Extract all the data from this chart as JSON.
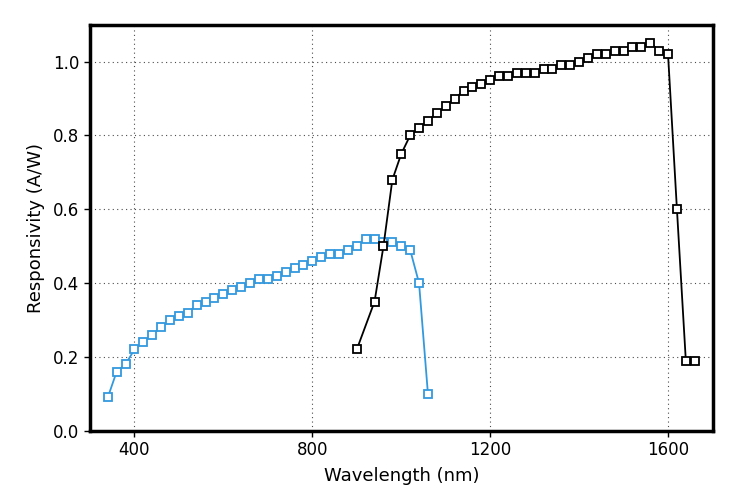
{
  "title": "",
  "xlabel": "Wavelength (nm)",
  "ylabel": "Responsivity (A/W)",
  "xlim": [
    300,
    1700
  ],
  "ylim": [
    0.0,
    1.1
  ],
  "yticks": [
    0.0,
    0.2,
    0.4,
    0.6,
    0.8,
    1.0
  ],
  "xticks": [
    400,
    800,
    1200,
    1600
  ],
  "background": "#ffffff",
  "blue_x": [
    340,
    360,
    380,
    400,
    420,
    440,
    460,
    480,
    500,
    520,
    540,
    560,
    580,
    600,
    620,
    640,
    660,
    680,
    700,
    720,
    740,
    760,
    780,
    800,
    820,
    840,
    860,
    880,
    900,
    920,
    940,
    960,
    980,
    1000,
    1020,
    1040,
    1060
  ],
  "blue_y": [
    0.09,
    0.16,
    0.18,
    0.22,
    0.24,
    0.26,
    0.28,
    0.3,
    0.31,
    0.32,
    0.34,
    0.35,
    0.36,
    0.37,
    0.38,
    0.39,
    0.4,
    0.41,
    0.41,
    0.42,
    0.43,
    0.44,
    0.45,
    0.46,
    0.47,
    0.48,
    0.48,
    0.49,
    0.5,
    0.52,
    0.52,
    0.51,
    0.51,
    0.5,
    0.49,
    0.4,
    0.1
  ],
  "black_x": [
    900,
    940,
    960,
    980,
    1000,
    1020,
    1040,
    1060,
    1080,
    1100,
    1120,
    1140,
    1160,
    1180,
    1200,
    1220,
    1240,
    1260,
    1280,
    1300,
    1320,
    1340,
    1360,
    1380,
    1400,
    1420,
    1440,
    1460,
    1480,
    1500,
    1520,
    1540,
    1560,
    1580,
    1600,
    1620,
    1640,
    1660
  ],
  "black_y": [
    0.22,
    0.35,
    0.5,
    0.68,
    0.75,
    0.8,
    0.82,
    0.84,
    0.86,
    0.88,
    0.9,
    0.92,
    0.93,
    0.94,
    0.95,
    0.96,
    0.96,
    0.97,
    0.97,
    0.97,
    0.98,
    0.98,
    0.99,
    0.99,
    1.0,
    1.01,
    1.02,
    1.02,
    1.03,
    1.03,
    1.04,
    1.04,
    1.05,
    1.03,
    1.02,
    0.6,
    0.19,
    0.19
  ],
  "blue_color": "#3399dd",
  "black_color": "#000000",
  "marker": "s",
  "markersize": 5.5,
  "linewidth": 1.3,
  "figsize": [
    7.5,
    4.95
  ],
  "dpi": 100
}
